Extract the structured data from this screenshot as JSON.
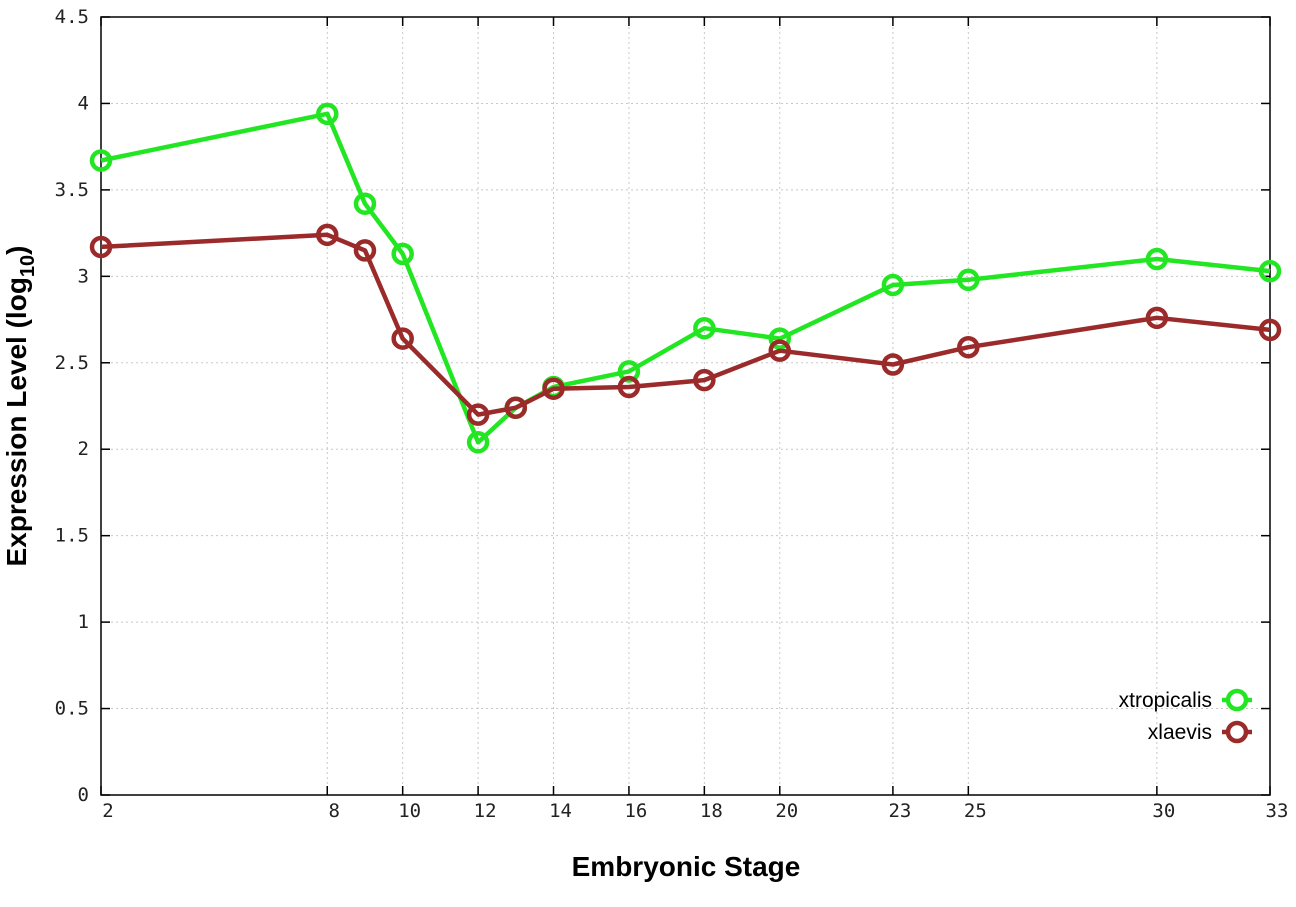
{
  "chart_data": {
    "type": "line",
    "title": "",
    "xlabel": "Embryonic Stage",
    "ylabel_main": "Expression Level (log",
    "ylabel_sub": "10",
    "ylabel_close": ")",
    "x_ticks": [
      2,
      8,
      10,
      12,
      14,
      16,
      18,
      20,
      23,
      25,
      30,
      33
    ],
    "x_categories": [
      2,
      8,
      9,
      10,
      12,
      13,
      14,
      16,
      18,
      20,
      23,
      25,
      30,
      33
    ],
    "y_ticks": [
      "0",
      "0.5",
      "1",
      "1.5",
      "2",
      "2.5",
      "3",
      "3.5",
      "4",
      "4.5"
    ],
    "ylim": [
      0,
      4.5
    ],
    "grid": true,
    "legend_position": "bottom-right",
    "series": [
      {
        "name": "xtropicalis",
        "color": "#22e622",
        "values": [
          3.67,
          3.94,
          3.42,
          3.13,
          2.04,
          2.24,
          2.36,
          2.45,
          2.7,
          2.64,
          2.95,
          2.98,
          3.1,
          3.03
        ]
      },
      {
        "name": "xlaevis",
        "color": "#9b2a2a",
        "values": [
          3.17,
          3.24,
          3.15,
          2.64,
          2.2,
          2.24,
          2.35,
          2.36,
          2.4,
          2.57,
          2.49,
          2.59,
          2.76,
          2.69
        ]
      }
    ]
  }
}
